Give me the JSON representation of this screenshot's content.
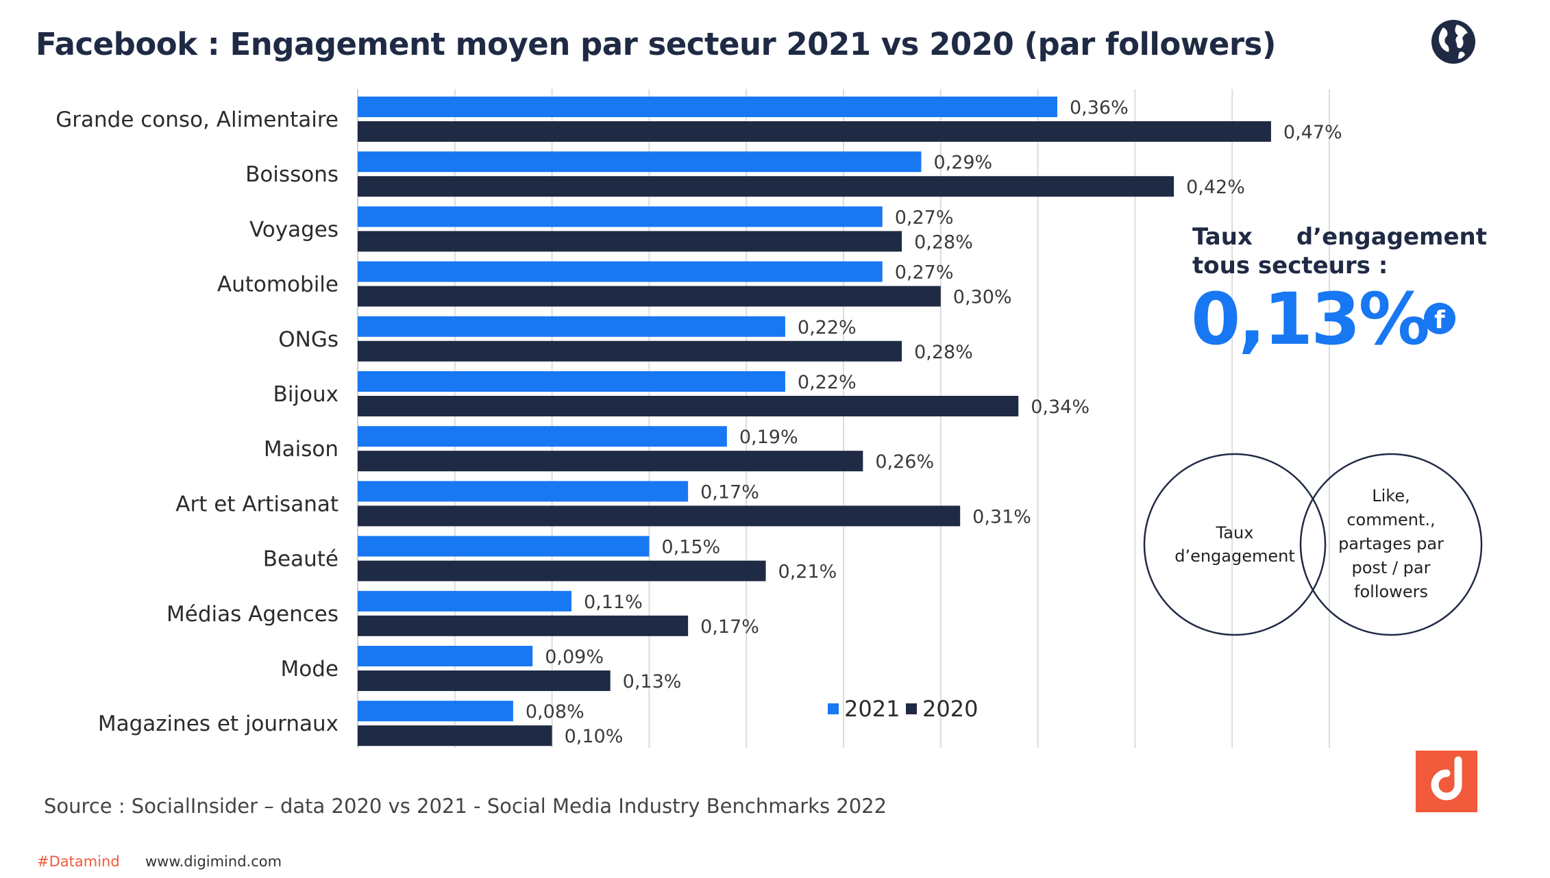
{
  "title": "Facebook : Engagement moyen par secteur 2021 vs 2020 (par followers)",
  "colors": {
    "series_2021": "#1877f2",
    "series_2020": "#1f2a44",
    "accent": "#f15a3a"
  },
  "chart_data": {
    "type": "bar",
    "orientation": "horizontal",
    "title": "Facebook : Engagement moyen par secteur 2021 vs 2020 (par followers)",
    "xlabel": "",
    "ylabel": "",
    "xlim": [
      0,
      0.5
    ],
    "unit": "%",
    "grid": true,
    "categories": [
      "Grande conso, Alimentaire",
      "Boissons",
      "Voyages",
      "Automobile",
      "ONGs",
      "Bijoux",
      "Maison",
      "Art et Artisanat",
      "Beauté",
      "Médias Agences",
      "Mode",
      "Magazines et  journaux"
    ],
    "series": [
      {
        "name": "2021",
        "values": [
          0.36,
          0.29,
          0.27,
          0.27,
          0.22,
          0.22,
          0.19,
          0.17,
          0.15,
          0.11,
          0.09,
          0.08
        ],
        "labels": [
          "0,36%",
          "0,29%",
          "0,27%",
          "0,27%",
          "0,22%",
          "0,22%",
          "0,19%",
          "0,17%",
          "0,15%",
          "0,11%",
          "0,09%",
          "0,08%"
        ]
      },
      {
        "name": "2020",
        "values": [
          0.47,
          0.42,
          0.28,
          0.3,
          0.28,
          0.34,
          0.26,
          0.31,
          0.21,
          0.17,
          0.13,
          0.1
        ],
        "labels": [
          "0,47%",
          "0,42%",
          "0,28%",
          "0,30%",
          "0,28%",
          "0,34%",
          "0,26%",
          "0,31%",
          "0,21%",
          "0,17%",
          "0,13%",
          "0,10%"
        ]
      }
    ],
    "legend": {
      "placement": "bottom-right",
      "entries": [
        "2021",
        "2020"
      ]
    }
  },
  "side_panel": {
    "heading_word1": "Taux",
    "heading_word2": "d’engagement",
    "heading_line2": "tous secteurs :",
    "overall_rate": "0,13%",
    "venn_left_line1": "Taux",
    "venn_left_line2": "d’engagement",
    "venn_right_lines": [
      "Like,",
      "comment.,",
      "partages par",
      "post / par",
      "followers"
    ]
  },
  "source": "Source : SocialInsider – data 2020 vs 2021 - Social Media Industry Benchmarks 2022",
  "footer": {
    "hashtag": "#Datamind",
    "url": "www.digimind.com"
  },
  "icons": {
    "globe": "globe-icon",
    "facebook": "facebook-icon",
    "logo": "digimind-logo-icon"
  }
}
